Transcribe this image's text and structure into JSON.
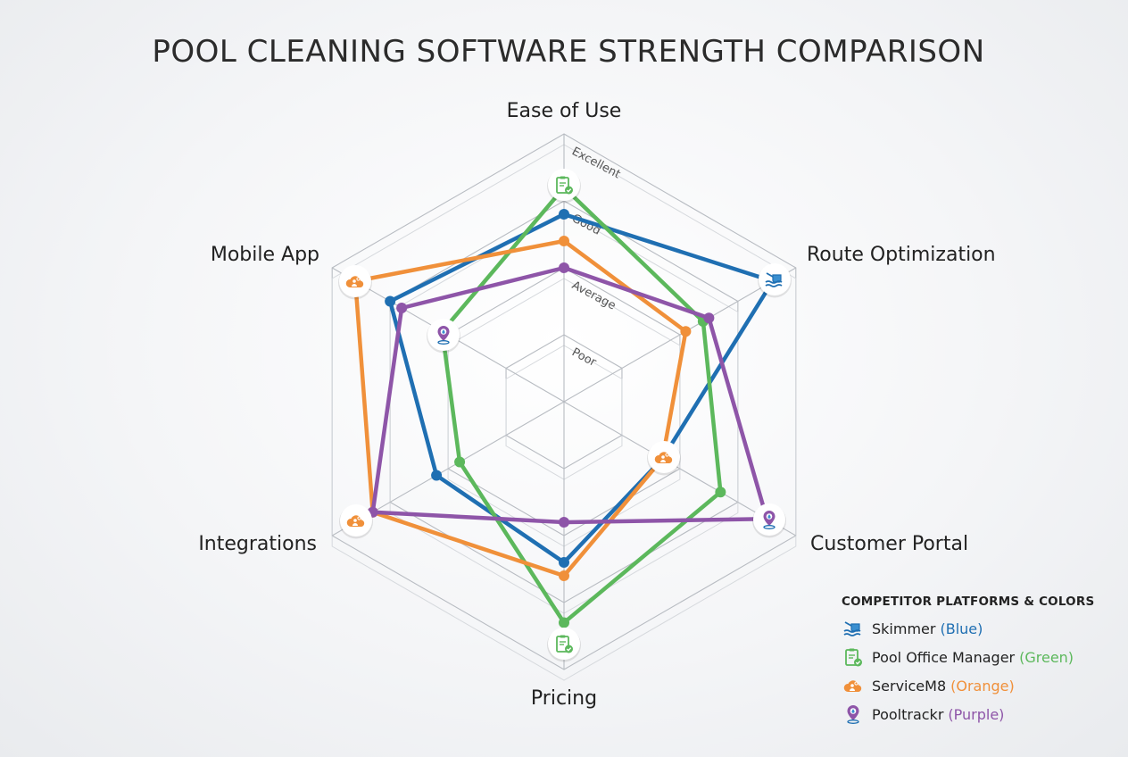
{
  "title": "POOL CLEANING SOFTWARE STRENGTH COMPARISON",
  "chart_data": {
    "type": "radar",
    "title": "POOL CLEANING SOFTWARE STRENGTH COMPARISON",
    "axes": [
      "Ease of Use",
      "Route Optimization",
      "Customer Portal",
      "Pricing",
      "Integrations",
      "Mobile App"
    ],
    "levels": [
      "Poor",
      "Average",
      "Good",
      "Excellent"
    ],
    "range": [
      0,
      4
    ],
    "grid": true,
    "legend_position": "bottom-right",
    "series": [
      {
        "name": "Skimmer",
        "color_name": "Blue",
        "color": "#1f6fb2",
        "values": [
          2.8,
          3.6,
          1.7,
          2.4,
          2.2,
          3.0
        ]
      },
      {
        "name": "Pool Office Manager",
        "color_name": "Green",
        "color": "#5cb85c",
        "values": [
          3.2,
          2.4,
          2.7,
          3.3,
          1.8,
          2.1
        ]
      },
      {
        "name": "ServiceM8",
        "color_name": "Orange",
        "color": "#f0903a",
        "values": [
          2.4,
          2.1,
          1.7,
          2.6,
          3.3,
          3.6
        ]
      },
      {
        "name": "Pooltrackr",
        "color_name": "Purple",
        "color": "#8e55a8",
        "values": [
          2.0,
          2.5,
          3.5,
          1.8,
          3.3,
          2.8
        ]
      }
    ],
    "axis_icons": [
      {
        "axis": "Ease of Use",
        "icon": "clipboard-check-icon",
        "series": "Pool Office Manager"
      },
      {
        "axis": "Route Optimization",
        "icon": "pool-skimmer-icon",
        "series": "Skimmer"
      },
      {
        "axis": "Customer Portal",
        "icon": "cloud-people-icon",
        "series": "ServiceM8"
      },
      {
        "axis": "Customer Portal",
        "icon": "location-pin-icon",
        "series": "Pooltrackr"
      },
      {
        "axis": "Pricing",
        "icon": "clipboard-check-icon",
        "series": "Pool Office Manager"
      },
      {
        "axis": "Integrations",
        "icon": "cloud-people-icon",
        "series": "ServiceM8"
      },
      {
        "axis": "Mobile App",
        "icon": "cloud-people-icon",
        "series": "ServiceM8"
      },
      {
        "axis": "Mobile App",
        "icon": "location-pin-icon",
        "series": "Pooltrackr"
      }
    ]
  },
  "legend": {
    "title": "COMPETITOR PLATFORMS & COLORS",
    "items": [
      {
        "name": "Skimmer",
        "paren": "(Blue)",
        "color": "#1f6fb2",
        "icon": "pool-skimmer-icon"
      },
      {
        "name": "Pool Office Manager",
        "paren": "(Green)",
        "color": "#5cb85c",
        "icon": "clipboard-check-icon"
      },
      {
        "name": "ServiceM8",
        "paren": "(Orange)",
        "color": "#f0903a",
        "icon": "cloud-people-icon"
      },
      {
        "name": "Pooltrackr",
        "paren": "(Purple)",
        "color": "#8e55a8",
        "icon": "location-pin-icon"
      }
    ]
  }
}
